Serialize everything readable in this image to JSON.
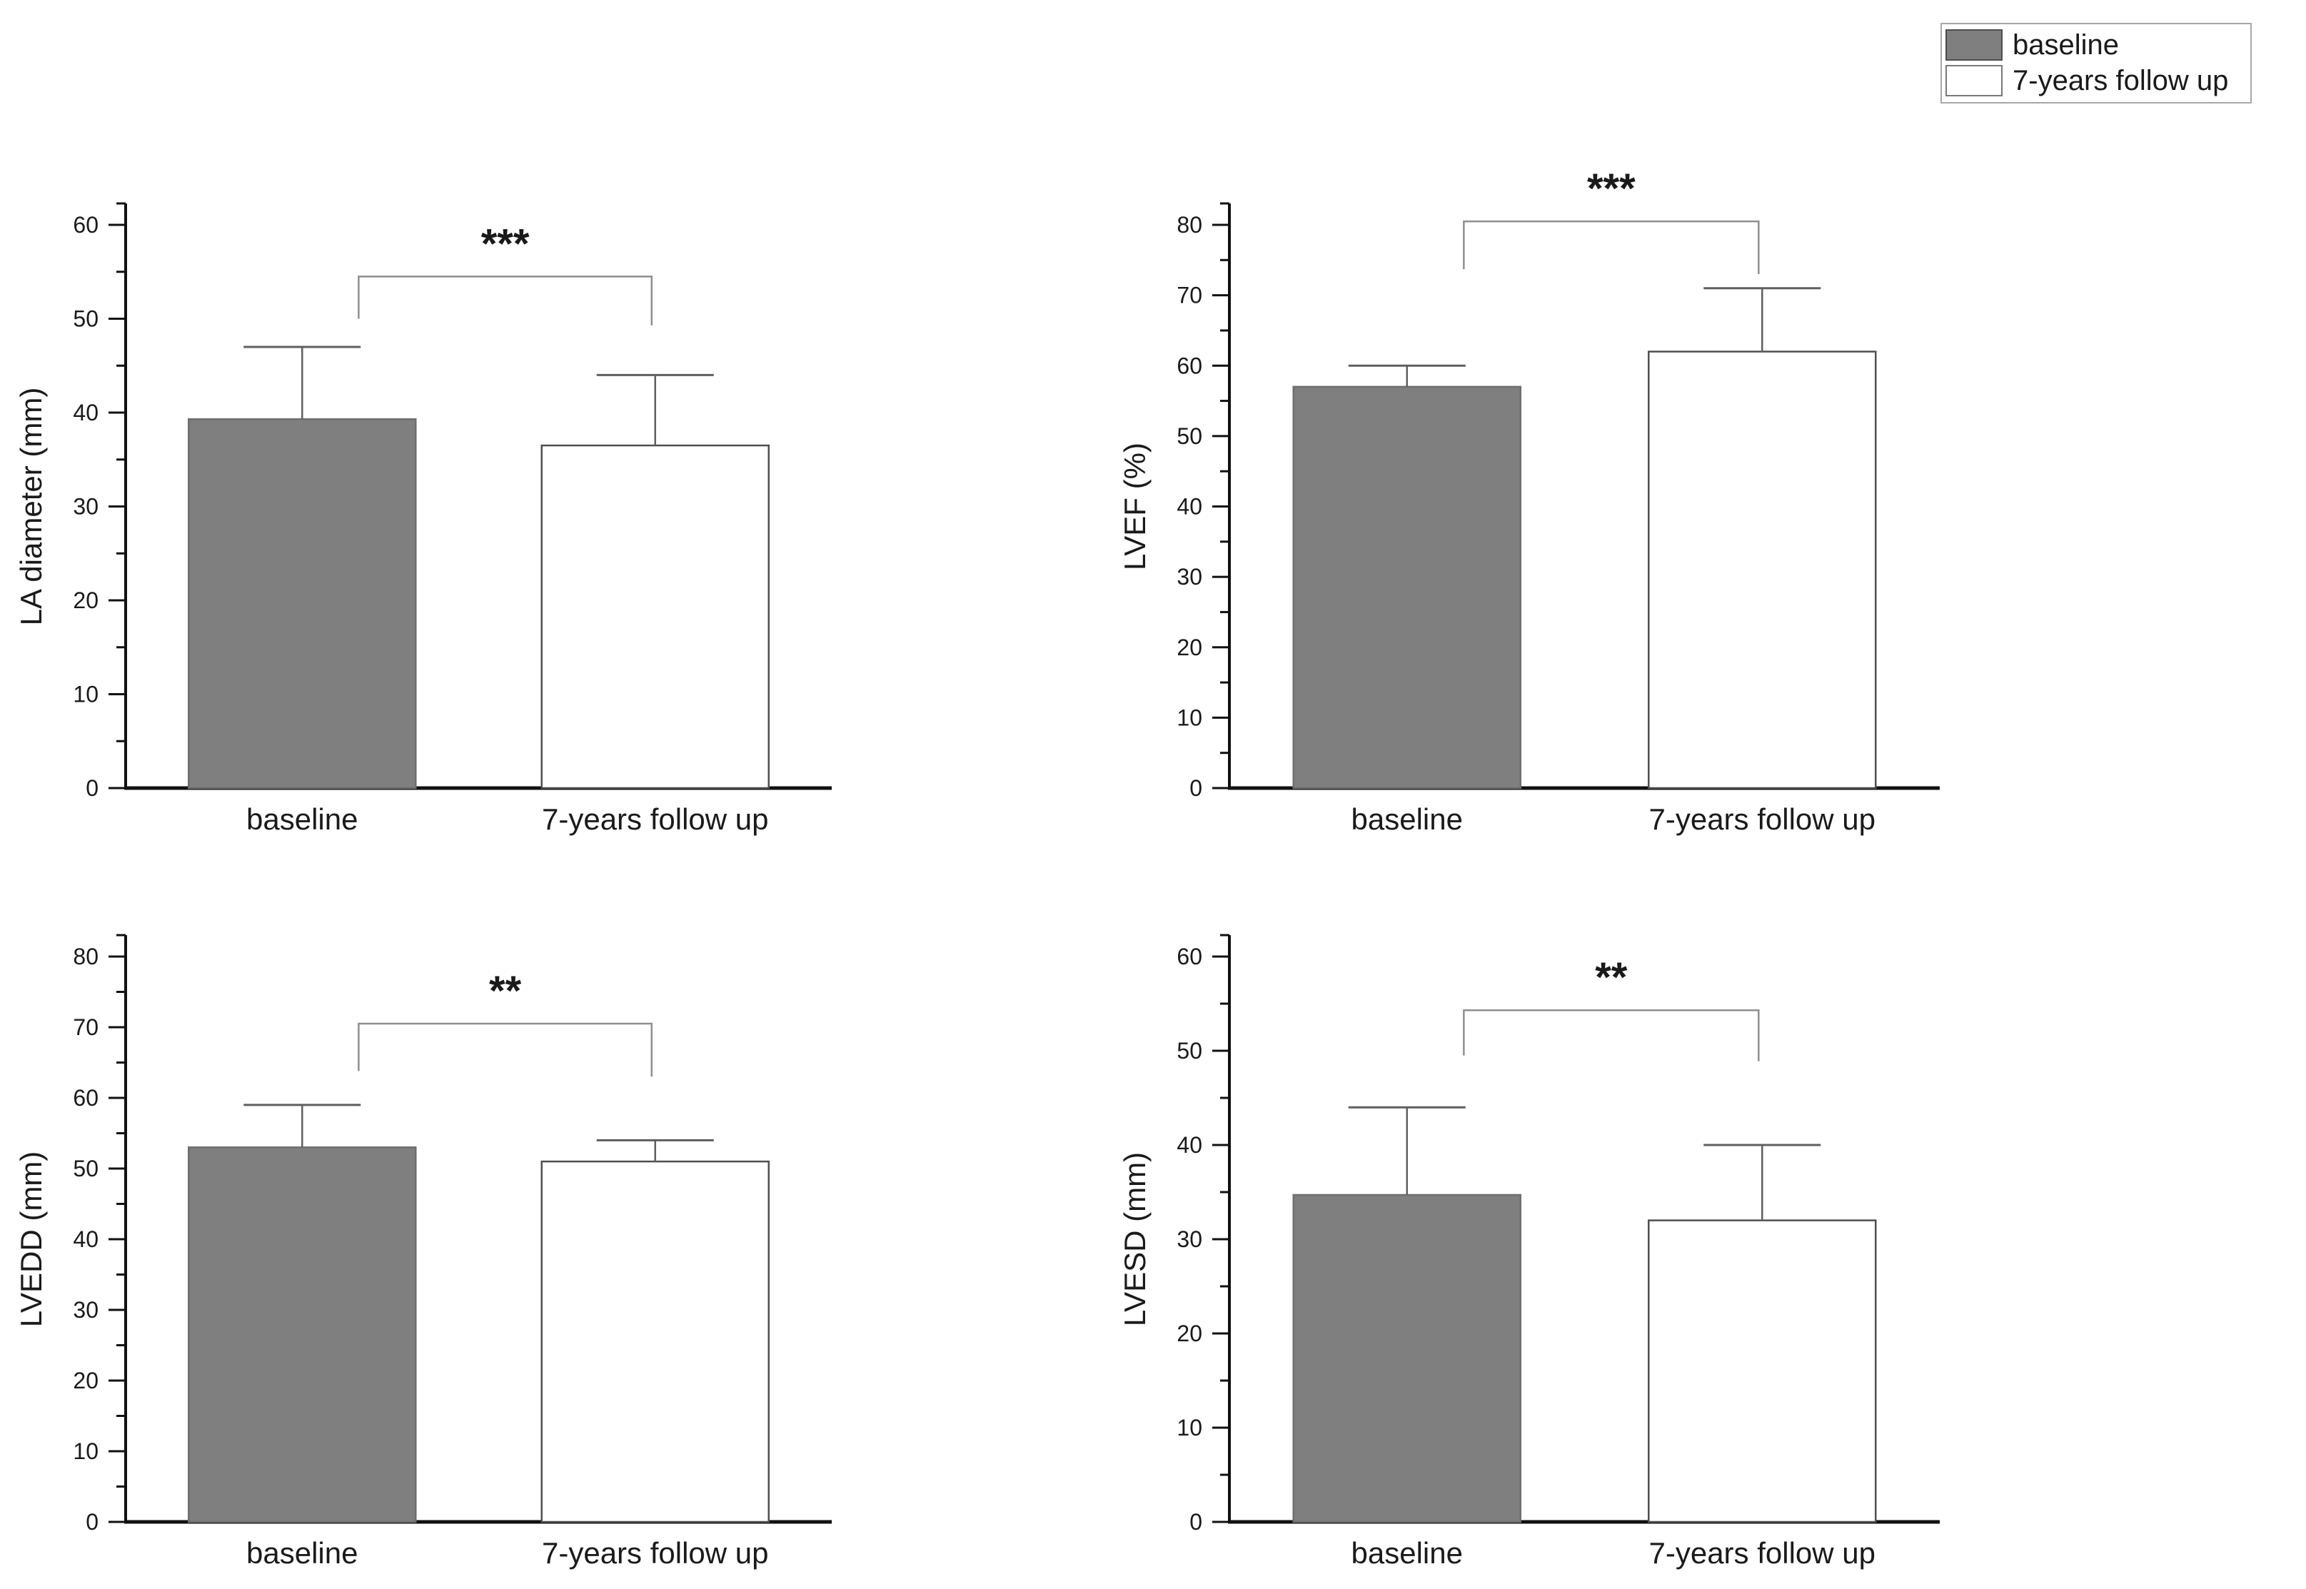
{
  "figure": {
    "background": "#ffffff"
  },
  "legend": {
    "box_border": "#a8a8a8",
    "items": [
      {
        "label": "baseline",
        "fill": "#7f7f7f",
        "border": "#4d4d4d"
      },
      {
        "label": "7-years follow up",
        "fill": "#ffffff",
        "border": "#7a7a7a"
      }
    ]
  },
  "colors": {
    "axis": "#111111",
    "tick_text": "#1a1a1a",
    "bar_baseline_fill": "#7f7f7f",
    "bar_baseline_border": "#6e6e6e",
    "bar_followup_fill": "#ffffff",
    "bar_followup_border": "#4f4f4f",
    "error_bar": "#5f5f5f",
    "bracket": "#8f8f8f",
    "sig_text": "#111111"
  },
  "chart_data": [
    {
      "key": "la-diameter",
      "type": "bar",
      "title": "",
      "xlabel": "",
      "ylabel": "LA diameter (mm)",
      "ylim": [
        0,
        60
      ],
      "ytick_step": 10,
      "grid": false,
      "legend_position": "none",
      "categories": [
        "baseline",
        "7-years follow up"
      ],
      "values": [
        39.3,
        36.5
      ],
      "error_caps": [
        47,
        44
      ],
      "significance": {
        "label": "***",
        "bracket_top": 54.5,
        "left_drop": 50.0,
        "right_drop": 49.3
      }
    },
    {
      "key": "lvef",
      "type": "bar",
      "title": "",
      "xlabel": "",
      "ylabel": "LVEF (%)",
      "ylim": [
        0,
        80
      ],
      "ytick_step": 10,
      "grid": false,
      "legend_position": "none",
      "categories": [
        "baseline",
        "7-years follow up"
      ],
      "values": [
        57,
        62
      ],
      "error_caps": [
        60,
        71
      ],
      "significance": {
        "label": "***",
        "bracket_top": 80.5,
        "left_drop": 73.7,
        "right_drop": 73.0
      }
    },
    {
      "key": "lvedd",
      "type": "bar",
      "title": "",
      "xlabel": "",
      "ylabel": "LVEDD (mm)",
      "ylim": [
        0,
        80
      ],
      "ytick_step": 10,
      "grid": false,
      "legend_position": "none",
      "categories": [
        "baseline",
        "7-years follow up"
      ],
      "values": [
        53,
        51
      ],
      "error_caps": [
        59,
        54
      ],
      "significance": {
        "label": "**",
        "bracket_top": 70.5,
        "left_drop": 63.8,
        "right_drop": 63.0
      }
    },
    {
      "key": "lvesd",
      "type": "bar",
      "title": "",
      "xlabel": "",
      "ylabel": "LVESD (mm)",
      "ylim": [
        0,
        60
      ],
      "ytick_step": 10,
      "grid": false,
      "legend_position": "none",
      "categories": [
        "baseline",
        "7-years follow up"
      ],
      "values": [
        34.7,
        32
      ],
      "error_caps": [
        44,
        40
      ],
      "significance": {
        "label": "**",
        "bracket_top": 54.3,
        "left_drop": 49.5,
        "right_drop": 48.9
      }
    }
  ]
}
